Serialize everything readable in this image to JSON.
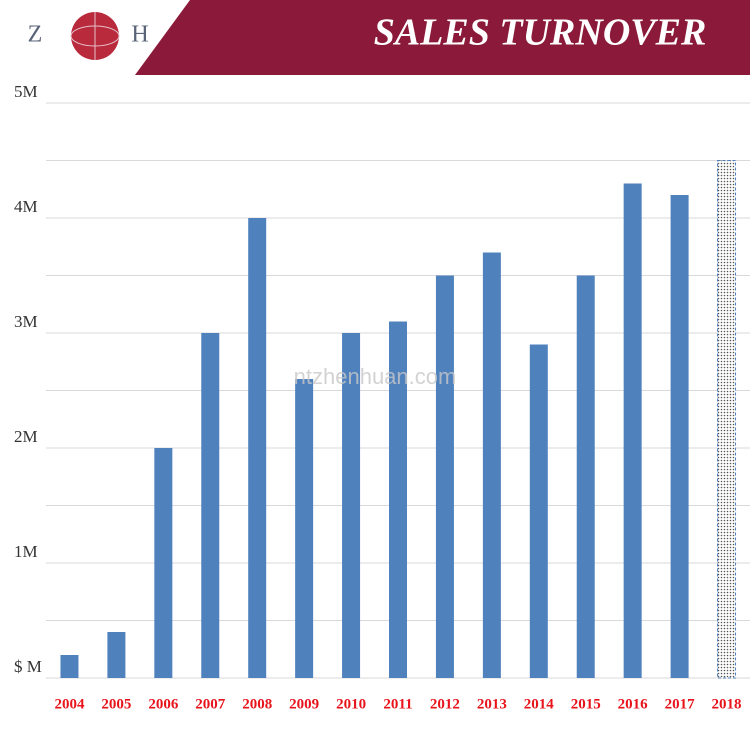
{
  "chart_data": {
    "type": "bar",
    "title": "SALES TURNOVER",
    "logo_left": "Z",
    "logo_right": "H",
    "watermark": "ntzhenhuan.com",
    "categories": [
      "2004",
      "2005",
      "2006",
      "2007",
      "2008",
      "2009",
      "2010",
      "2011",
      "2012",
      "2013",
      "2014",
      "2015",
      "2016",
      "2017",
      "2018"
    ],
    "values": [
      0.2,
      0.4,
      2,
      3,
      4,
      2.6,
      3,
      3.1,
      3.5,
      3.7,
      2.9,
      3.5,
      4.3,
      4.2,
      4.5
    ],
    "bar_styles": [
      "solid",
      "solid",
      "solid",
      "solid",
      "solid",
      "solid",
      "solid",
      "solid",
      "solid",
      "solid",
      "solid",
      "solid",
      "solid",
      "solid",
      "dotted"
    ],
    "color": "#4f81bd",
    "ylim": [
      0,
      5
    ],
    "yticks": [
      {
        "value": 0,
        "label": "$ M"
      },
      {
        "value": 1,
        "label": "1M"
      },
      {
        "value": 2,
        "label": "2M"
      },
      {
        "value": 3,
        "label": "3M"
      },
      {
        "value": 4,
        "label": "4M"
      },
      {
        "value": 5,
        "label": "5M"
      }
    ],
    "minor_yticks": [
      0.5,
      1.5,
      2.5,
      3.5,
      4.5
    ],
    "grid": true
  }
}
